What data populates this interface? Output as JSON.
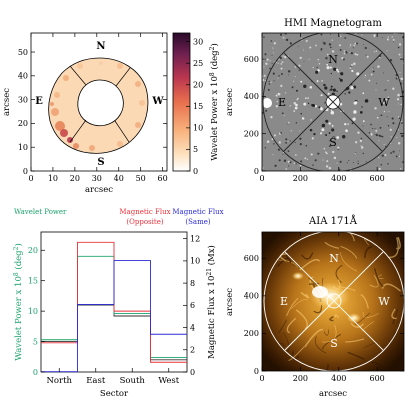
{
  "chart_data": [
    {
      "type": "heatmap",
      "xlabel": "arcsec",
      "ylabel": "arcsec",
      "xlim": [
        0,
        62
      ],
      "ylim": [
        0,
        58
      ],
      "xticks": [
        "0",
        "10",
        "20",
        "30",
        "40",
        "50",
        "60"
      ],
      "yticks": [
        "0",
        "10",
        "20",
        "30",
        "40",
        "50"
      ],
      "sector_labels": [
        "N",
        "E",
        "S",
        "W"
      ],
      "colorbar": {
        "label": "Wavelet Power x 10",
        "label_sup": "8",
        "label_unit": " (deg",
        "label_unit_sup": "2",
        "label_end": ")",
        "ticks": [
          "0",
          "5",
          "10",
          "15",
          "20",
          "25",
          "30"
        ],
        "range": [
          0,
          32
        ],
        "colors": [
          "#ffffff",
          "#fde2c0",
          "#f8b07a",
          "#e86f4e",
          "#b9354f",
          "#6e1f4f",
          "#2a0a2a"
        ]
      }
    },
    {
      "type": "heatmap",
      "title": "HMI Magnetogram",
      "ylabel": "arcsec",
      "xlim": [
        0,
        740
      ],
      "ylim": [
        0,
        740
      ],
      "xticks": [
        "0",
        "200",
        "400",
        "600"
      ],
      "yticks": [
        "0",
        "200",
        "400",
        "600"
      ],
      "sector_labels": [
        "N",
        "E",
        "S",
        "W"
      ]
    },
    {
      "type": "bar",
      "categories": [
        "North",
        "East",
        "South",
        "West"
      ],
      "xlabel": "Sector",
      "ylabel": "Wavelet Power x 10",
      "ylabel_sup": "8",
      "ylabel_unit": " (deg",
      "ylabel_unit_sup": "2",
      "ylabel_end": ")",
      "ylim": [
        0,
        23
      ],
      "yticks": [
        "0",
        "5",
        "10",
        "15",
        "20"
      ],
      "y2label": "Magnetic Flux x 10",
      "y2label_sup": "21",
      "y2label_unit": " (Mx)",
      "y2lim": [
        0,
        12.6
      ],
      "y2ticks": [
        "0",
        "2",
        "4",
        "6",
        "8",
        "10",
        "12"
      ],
      "legend": [
        {
          "text": "Wavelet Power",
          "color": "#1aa36b"
        },
        {
          "text": "Magnetic Flux",
          "text2": "(Opposite)",
          "color": "#e8303a"
        },
        {
          "text": "Magnetic Flux",
          "text2": "(Same)",
          "color": "#2a2ad8"
        }
      ],
      "series": [
        {
          "name": "Wavelet Power",
          "axis": "left",
          "color": "#1aa36b",
          "values": [
            5.3,
            19.0,
            9.6,
            2.4
          ]
        },
        {
          "name": "Magnetic Flux (Opposite)",
          "axis": "left",
          "color": "#e8303a",
          "values": [
            4.8,
            21.3,
            10.0,
            1.6
          ]
        },
        {
          "name": "Magnetic Flux (Same)",
          "axis": "left",
          "color": "#2a2ad8",
          "values": [
            0.05,
            11.1,
            18.3,
            6.2
          ]
        }
      ],
      "extra_series": [
        {
          "color": "#333333",
          "axis": "left",
          "values": [
            5.0,
            11.0,
            9.2,
            2.0
          ]
        }
      ]
    },
    {
      "type": "heatmap",
      "title": "AIA 171Å",
      "xlabel": "arcsec",
      "ylabel": "arcsec",
      "xlim": [
        0,
        740
      ],
      "ylim": [
        0,
        740
      ],
      "xticks": [
        "0",
        "200",
        "400",
        "600"
      ],
      "yticks": [
        "0",
        "200",
        "400",
        "600"
      ],
      "sector_labels": [
        "N",
        "E",
        "S",
        "W"
      ]
    }
  ]
}
